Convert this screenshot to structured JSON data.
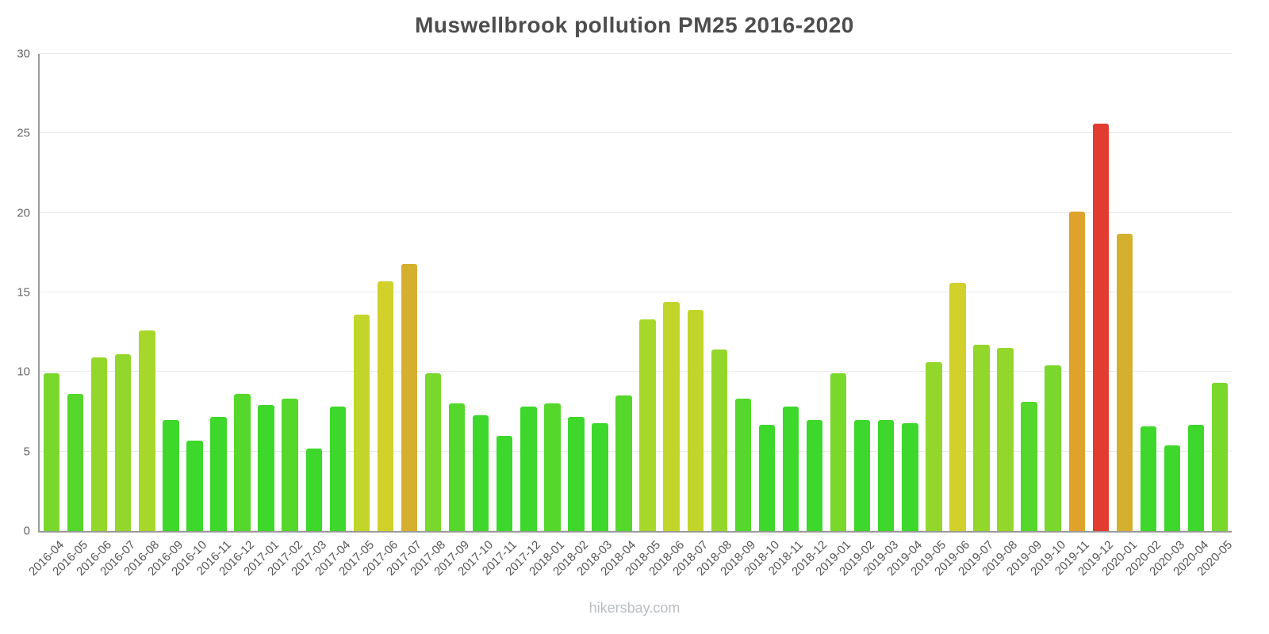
{
  "title": "Muswellbrook pollution PM25 2016-2020",
  "footer": "hikersbay.com",
  "chart_data": {
    "type": "bar",
    "title": "Muswellbrook pollution PM25 2016-2020",
    "xlabel": "",
    "ylabel": "",
    "ylim": [
      0,
      30
    ],
    "yticks": [
      0,
      5,
      10,
      15,
      20,
      25,
      30
    ],
    "grid": true,
    "legend": "none",
    "categories": [
      "2016-04",
      "2016-05",
      "2016-06",
      "2016-07",
      "2016-08",
      "2016-09",
      "2016-10",
      "2016-11",
      "2016-12",
      "2017-01",
      "2017-02",
      "2017-03",
      "2017-04",
      "2017-05",
      "2017-06",
      "2017-07",
      "2017-08",
      "2017-09",
      "2017-10",
      "2017-11",
      "2017-12",
      "2018-01",
      "2018-02",
      "2018-03",
      "2018-04",
      "2018-05",
      "2018-06",
      "2018-07",
      "2018-08",
      "2018-09",
      "2018-10",
      "2018-11",
      "2018-12",
      "2019-01",
      "2019-02",
      "2019-03",
      "2019-04",
      "2019-05",
      "2019-06",
      "2019-07",
      "2019-08",
      "2019-09",
      "2019-10",
      "2019-11",
      "2019-12",
      "2020-01",
      "2020-02",
      "2020-03",
      "2020-04",
      "2020-05"
    ],
    "values": [
      9.9,
      8.6,
      10.9,
      11.1,
      12.6,
      7.0,
      5.7,
      7.2,
      8.6,
      7.9,
      8.3,
      5.2,
      7.8,
      13.6,
      15.7,
      16.8,
      9.9,
      8.0,
      7.3,
      6.0,
      7.8,
      8.0,
      7.2,
      6.8,
      8.5,
      13.3,
      14.4,
      13.9,
      11.4,
      8.3,
      6.7,
      7.8,
      7.0,
      9.9,
      7.0,
      7.0,
      6.8,
      10.6,
      15.6,
      11.7,
      11.5,
      8.1,
      10.4,
      20.1,
      25.6,
      18.7,
      6.6,
      5.4,
      6.7,
      9.3
    ],
    "color_scale": [
      {
        "max": 8,
        "color": "#3ed72b"
      },
      {
        "max": 9,
        "color": "#55d72b"
      },
      {
        "max": 10.5,
        "color": "#7ad72c"
      },
      {
        "max": 12,
        "color": "#93d72c"
      },
      {
        "max": 13.5,
        "color": "#a8d72b"
      },
      {
        "max": 14.8,
        "color": "#c2d52b"
      },
      {
        "max": 16.4,
        "color": "#d2d02b"
      },
      {
        "max": 19.4,
        "color": "#d5af2e"
      },
      {
        "max": 24,
        "color": "#dfa32c"
      },
      {
        "max": 999,
        "color": "#e23b31"
      }
    ],
    "axis_color": "#9a9a9a",
    "gridline_color": "#e8e8e8",
    "title_color": "#4d4d4d",
    "tick_label_color": "#555555",
    "watermark_color": "#b9bdc1"
  }
}
